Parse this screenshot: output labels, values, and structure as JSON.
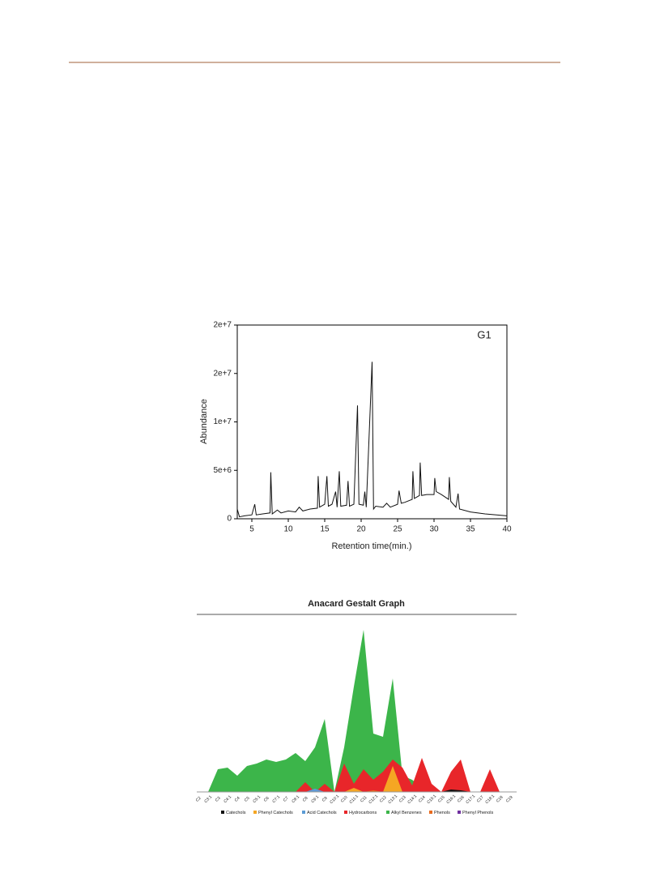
{
  "chart_data": [
    {
      "type": "line",
      "annotation": "G1",
      "xlabel": "Retention time(min.)",
      "ylabel": "Abundance",
      "xlim": [
        3,
        40
      ],
      "xticks": [
        5,
        10,
        15,
        20,
        25,
        30,
        35,
        40
      ],
      "ylim": [
        0,
        20000000
      ],
      "yticks": [
        0,
        {
          "value": 5000000,
          "label": "5e+6"
        },
        {
          "value": 10000000,
          "label": "1e+7"
        },
        {
          "value": 15000000,
          "label": "2e+7"
        },
        {
          "value": 20000000,
          "label": "2e+7"
        }
      ],
      "x": [
        3,
        3.3,
        4,
        5,
        5.4,
        5.6,
        6.5,
        7.5,
        7.6,
        7.8,
        8.5,
        9,
        10,
        11,
        11.5,
        12,
        13,
        14,
        14.1,
        14.3,
        15,
        15.3,
        15.5,
        16,
        16.5,
        16.7,
        17,
        17.2,
        18,
        18.2,
        18.4,
        19,
        19.5,
        19.7,
        20.3,
        20.5,
        20.7,
        21.5,
        21.7,
        22,
        23,
        23.5,
        24,
        25,
        25.2,
        25.5,
        26,
        27,
        27.1,
        27.3,
        28,
        28.1,
        28.3,
        29,
        30,
        30.1,
        30.3,
        31,
        32,
        32.1,
        32.3,
        33,
        33.3,
        33.5,
        35,
        37,
        40
      ],
      "series": [
        {
          "color": "#111111",
          "values": [
            1000000,
            200000,
            300000,
            400000,
            1500000,
            400000,
            500000,
            600000,
            4800000,
            500000,
            900000,
            600000,
            800000,
            700000,
            1200000,
            800000,
            1000000,
            1100000,
            4400000,
            1200000,
            1500000,
            4400000,
            1300000,
            1500000,
            2800000,
            1200000,
            4900000,
            1300000,
            1400000,
            3900000,
            1300000,
            1500000,
            11700000,
            1500000,
            1400000,
            2800000,
            1200000,
            16200000,
            1000000,
            1300000,
            1200000,
            1600000,
            1200000,
            1500000,
            2900000,
            1600000,
            1700000,
            2000000,
            4900000,
            2100000,
            2400000,
            5800000,
            2400000,
            2500000,
            2500000,
            4200000,
            2800000,
            2500000,
            2000000,
            4300000,
            1800000,
            1200000,
            2600000,
            1000000,
            700000,
            500000,
            300000
          ]
        }
      ]
    },
    {
      "type": "area",
      "title": "Anacard Gestalt Graph",
      "categories": [
        "C2",
        "C3:1",
        "C3",
        "C4:1",
        "C4",
        "C5",
        "C5:1",
        "C6",
        "C7:1",
        "C7",
        "C8:1",
        "C8",
        "C9:1",
        "C9",
        "C10:1",
        "C10",
        "C11:1",
        "C11",
        "C12:1",
        "C12",
        "C13:1",
        "C13",
        "C14:1",
        "C14",
        "C15:1",
        "C15",
        "C16:1",
        "C16",
        "C17:1",
        "C17",
        "C18:1",
        "C18",
        "C19"
      ],
      "series": [
        {
          "name": "Alkyl Benzenes",
          "color": "#3cb54a",
          "values": [
            0,
            0,
            28,
            30,
            20,
            32,
            35,
            40,
            37,
            40,
            48,
            38,
            55,
            90,
            0,
            55,
            130,
            200,
            72,
            68,
            140,
            20,
            15,
            5,
            0,
            0,
            0,
            0,
            0,
            0,
            0,
            0,
            0
          ]
        },
        {
          "name": "Hydrocarbons",
          "color": "#e8262a",
          "values": [
            0,
            0,
            0,
            0,
            0,
            0,
            0,
            0,
            0,
            0,
            0,
            12,
            0,
            10,
            0,
            35,
            10,
            28,
            15,
            25,
            40,
            30,
            8,
            42,
            10,
            0,
            25,
            40,
            0,
            0,
            28,
            0,
            0
          ]
        },
        {
          "name": "Phenyl Catechols",
          "color": "#f5a623",
          "values": [
            0,
            0,
            0,
            0,
            0,
            0,
            0,
            0,
            0,
            0,
            0,
            0,
            0,
            0,
            0,
            0,
            5,
            0,
            0,
            0,
            32,
            0,
            0,
            0,
            0,
            0,
            0,
            0,
            0,
            0,
            0,
            0,
            0
          ]
        },
        {
          "name": "Acid Catechols",
          "color": "#5b9bd5",
          "values": [
            0,
            0,
            0,
            0,
            0,
            0,
            0,
            0,
            0,
            0,
            0,
            0,
            4,
            0,
            0,
            0,
            0,
            0,
            0,
            0,
            0,
            0,
            0,
            0,
            0,
            0,
            0,
            0,
            0,
            0,
            0,
            0,
            0
          ]
        },
        {
          "name": "Catechols",
          "color": "#111111",
          "values": [
            0,
            0,
            0,
            0,
            0,
            0,
            0,
            0,
            0,
            0,
            0,
            0,
            0,
            0,
            0,
            0,
            0,
            0,
            0,
            0,
            0,
            0,
            0,
            0,
            0,
            0,
            3,
            2,
            0,
            0,
            0,
            0,
            0
          ]
        },
        {
          "name": "Phenols",
          "color": "#e86b1f",
          "values": [
            0,
            0,
            0,
            0,
            0,
            0,
            0,
            0,
            0,
            0,
            0,
            0,
            0,
            0,
            0,
            0,
            0,
            0,
            2,
            0,
            0,
            0,
            0,
            0,
            0,
            0,
            0,
            0,
            0,
            0,
            0,
            0,
            0
          ]
        },
        {
          "name": "Phenyl Phenols",
          "color": "#7030a0",
          "values": [
            0,
            0,
            0,
            0,
            0,
            0,
            0,
            0,
            0,
            0,
            0,
            0,
            0,
            0,
            0,
            0,
            0,
            0,
            0,
            0,
            0,
            0,
            0,
            0,
            0,
            0,
            0,
            0,
            0,
            0,
            0,
            0,
            0
          ]
        }
      ]
    }
  ]
}
